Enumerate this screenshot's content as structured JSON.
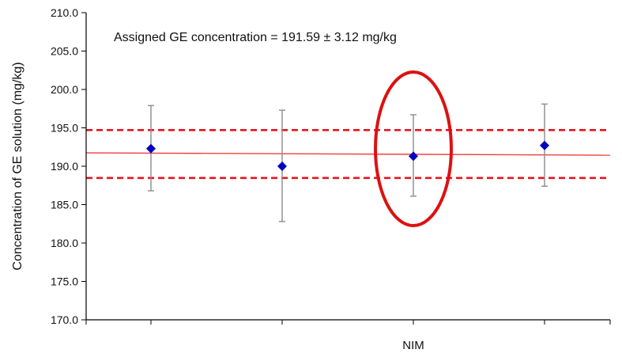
{
  "chart_data": {
    "type": "scatter",
    "ylabel": "Concentration of GE solution (mg/kg)",
    "xlabel": "",
    "ylim": [
      170.0,
      210.0
    ],
    "yticks": [
      "170.0",
      "175.0",
      "180.0",
      "185.0",
      "190.0",
      "195.0",
      "200.0",
      "205.0",
      "210.0"
    ],
    "categories": [
      "",
      "",
      "NIM",
      ""
    ],
    "grid": false,
    "annotation": "Assigned GE concentration = 191.59 ± 3.12 mg/kg",
    "assigned_value": 191.59,
    "assigned_uncertainty": 3.12,
    "series": [
      {
        "values": [
          192.3,
          190.0,
          191.3,
          192.7
        ],
        "error_low": [
          186.8,
          182.8,
          186.1,
          187.4
        ],
        "error_high": [
          197.9,
          197.3,
          196.7,
          198.1
        ]
      }
    ],
    "highlighted_category_index": 2,
    "colors": {
      "marker": "#0000c0",
      "error_bar": "#8c8c8c",
      "reference_line": "#f04040",
      "limit_lines": "#e8141e",
      "highlight_ellipse": "#dd1111",
      "axis": "#000000"
    }
  }
}
